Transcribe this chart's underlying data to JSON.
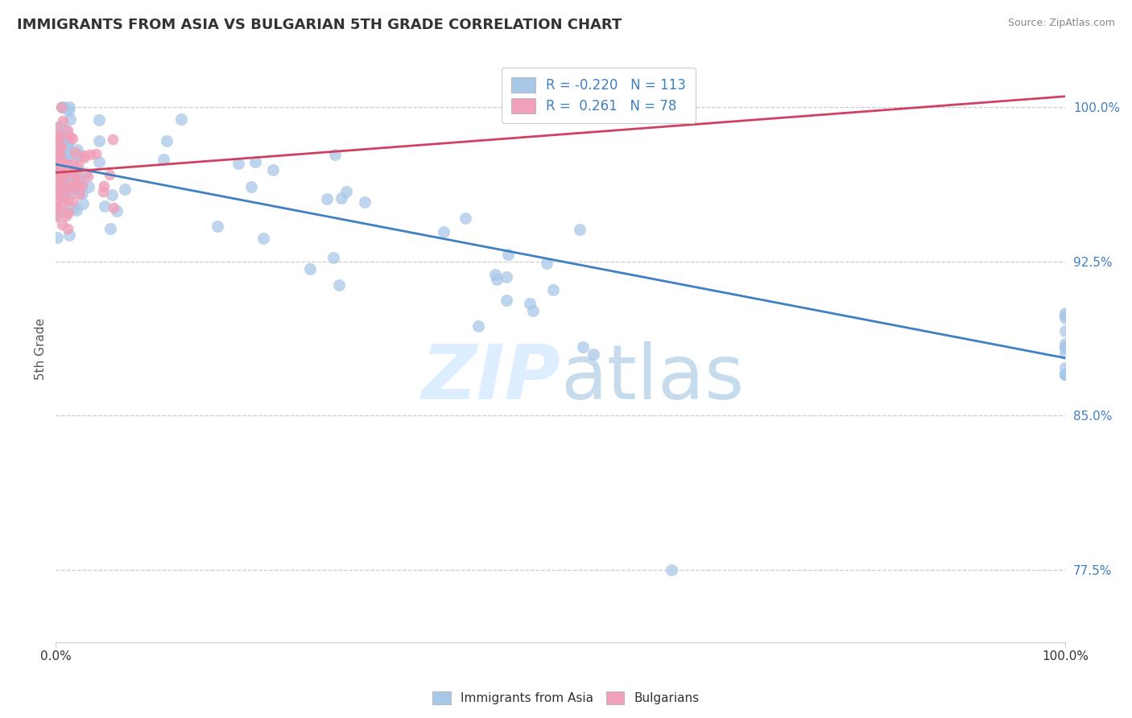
{
  "title": "IMMIGRANTS FROM ASIA VS BULGARIAN 5TH GRADE CORRELATION CHART",
  "source": "Source: ZipAtlas.com",
  "ylabel": "5th Grade",
  "xlim": [
    0,
    1.0
  ],
  "ylim": [
    0.74,
    1.025
  ],
  "yticks": [
    0.775,
    0.85,
    0.925,
    1.0
  ],
  "ytick_labels": [
    "77.5%",
    "85.0%",
    "92.5%",
    "100.0%"
  ],
  "xtick_positions": [
    0.0,
    1.0
  ],
  "xtick_labels": [
    "0.0%",
    "100.0%"
  ],
  "bottom_legend_labels": [
    "Immigrants from Asia",
    "Bulgarians"
  ],
  "R_asia": -0.22,
  "N_asia": 113,
  "R_bulg": 0.261,
  "N_bulg": 78,
  "color_asia": "#a8c8e8",
  "color_bulg": "#f0a0b8",
  "trendline_asia": "#4080c0",
  "trendline_bulg": "#d04060",
  "background": "#ffffff",
  "title_color": "#333333",
  "title_fontsize": 13,
  "ylabel_color": "#555555",
  "ytick_color": "#4080c0",
  "xtick_color": "#333333",
  "grid_color": "#cccccc",
  "source_color": "#888888",
  "legend_text_color": "#333333",
  "legend_R_color": "#4080c0",
  "legend_N_color": "#4080c0",
  "watermark_color": "#dceeff",
  "seed": 7,
  "asia_trend_x": [
    0.0,
    1.0
  ],
  "asia_trend_y": [
    0.972,
    0.878
  ],
  "bulg_trend_x": [
    0.0,
    1.0
  ],
  "bulg_trend_y": [
    0.968,
    1.005
  ]
}
